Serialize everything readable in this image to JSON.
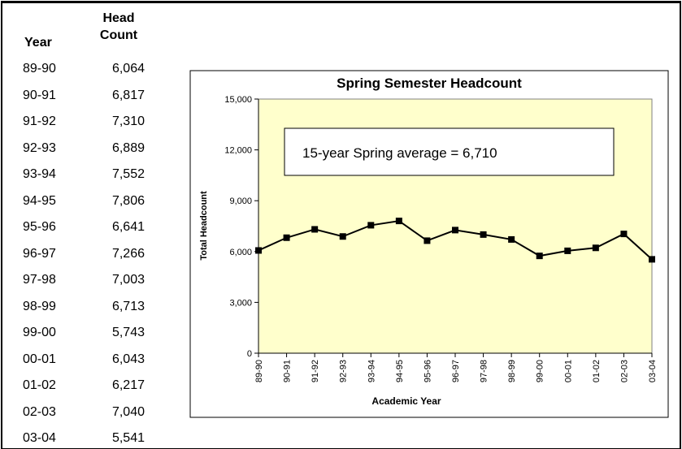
{
  "table": {
    "headers": [
      "Year",
      "Head Count"
    ],
    "rows": [
      [
        "89-90",
        "6,064"
      ],
      [
        "90-91",
        "6,817"
      ],
      [
        "91-92",
        "7,310"
      ],
      [
        "92-93",
        "6,889"
      ],
      [
        "93-94",
        "7,552"
      ],
      [
        "94-95",
        "7,806"
      ],
      [
        "95-96",
        "6,641"
      ],
      [
        "96-97",
        "7,266"
      ],
      [
        "97-98",
        "7,003"
      ],
      [
        "98-99",
        "6,713"
      ],
      [
        "99-00",
        "5,743"
      ],
      [
        "00-01",
        "6,043"
      ],
      [
        "01-02",
        "6,217"
      ],
      [
        "02-03",
        "7,040"
      ],
      [
        "03-04",
        "5,541"
      ]
    ]
  },
  "chart_data": {
    "type": "line",
    "title": "Spring Semester Headcount",
    "annotation": "15-year Spring average = 6,710",
    "x_label": "Academic Year",
    "y_label": "Total Headcount",
    "categories": [
      "89-90",
      "90-91",
      "91-92",
      "92-93",
      "93-94",
      "94-95",
      "95-96",
      "96-97",
      "97-98",
      "98-99",
      "99-00",
      "00-01",
      "01-02",
      "02-03",
      "03-04"
    ],
    "values": [
      6064,
      6817,
      7310,
      6889,
      7552,
      7806,
      6641,
      7266,
      7003,
      6713,
      5743,
      6043,
      6217,
      7040,
      5541
    ],
    "color": "#000000",
    "background": "#ffffcc",
    "ylim": [
      0,
      15000
    ],
    "yticks": [
      0,
      {
        "value": 3000,
        "label": "3,000"
      },
      {
        "value": 6000,
        "label": "6,000"
      },
      {
        "value": 9000,
        "label": "9,000"
      },
      {
        "value": 12000,
        "label": "12,000"
      },
      {
        "value": 15000,
        "label": "15,000"
      }
    ]
  }
}
